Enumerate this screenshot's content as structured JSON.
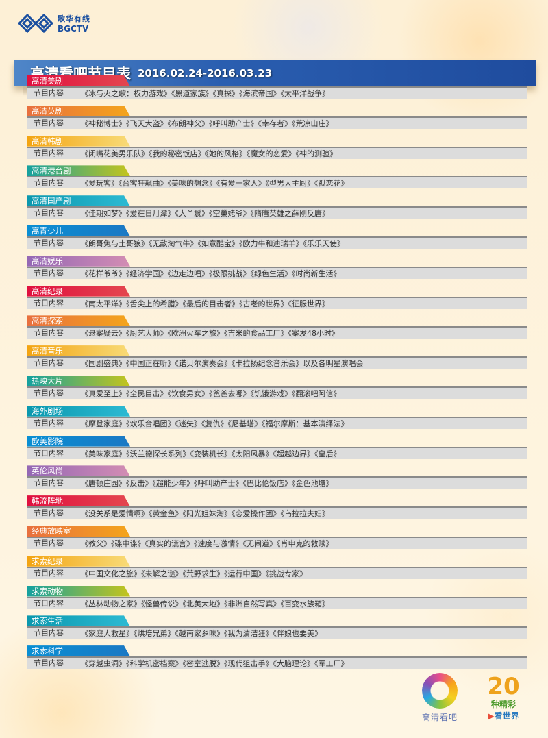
{
  "logo": {
    "cn": "歌华有线",
    "en": "BGCTV"
  },
  "header": {
    "title": "高清看吧节目表",
    "date_range": "2016.02.24-2016.03.23"
  },
  "row_label": "节目内容",
  "colors": {
    "red": "#e0103f",
    "orange": "#f4a51b",
    "yellow": "#f3a412",
    "green": "#16a19f",
    "cyan": "#0b98ae",
    "blue": "#0a8fd3",
    "purple": "#9468b5",
    "header_blue": "#2a5eb0"
  },
  "sections": [
    {
      "name": "高清美剧",
      "content": "《冰与火之歌：权力游戏》《黑道家族》《真探》《海滨帝国》《太平洋战争》"
    },
    {
      "name": "高清英剧",
      "content": "《神秘博士》《飞天大盗》《布朗神父》《呼叫助产士》《幸存者》《荒凉山庄》"
    },
    {
      "name": "高清韩剧",
      "content": "《闭嘴花美男乐队》《我的秘密饭店》《她的风格》《魔女的恋爱》《神的测验》"
    },
    {
      "name": "高清港台剧",
      "content": "《爱玩客》《台客狂飙曲》《美味的想念》《有爱一家人》《型男大主厨》《孤恋花》"
    },
    {
      "name": "高清国产剧",
      "content": "《佳期如梦》《爱在日月潭》《大丫鬟》《空巢姥爷》《隋唐英雄之薛刚反唐》"
    },
    {
      "name": "高青少儿",
      "content": "《朗哥兔与土哥狼》《无敌淘气牛》《如意酷宝》《欧力牛和迪瑞羊》《乐乐天使》"
    },
    {
      "name": "高清娱乐",
      "content": "《花样爷爷》《经济学园》《边走边唱》《极限挑战》《绿色生活》《时尚新生活》"
    },
    {
      "name": "高清纪录",
      "content": "《南太平洋》《舌尖上的希腊》《最后的目击者》《古老的世界》《征服世界》"
    },
    {
      "name": "高清探索",
      "content": "《悬案疑云》《厨艺大师》《欧洲火车之旅》《吉米的食品工厂》《案发48小时》"
    },
    {
      "name": "高清音乐",
      "content": "《国剧盛典》《中国正在听》《诺贝尔演奏会》《卡拉扬纪念音乐会》以及各明星演唱会"
    },
    {
      "name": "热映大片",
      "content": "《真爱至上》《全民目击》《饮食男女》《爸爸去哪》《饥饿游戏》《翻滚吧阿信》"
    },
    {
      "name": "海外剧场",
      "content": "《摩登家庭》《欢乐合唱团》《迷失》《复仇》《尼基塔》《福尔摩斯：基本演绎法》"
    },
    {
      "name": "欧美影院",
      "content": "《美味家庭》《沃兰德探长系列》《变装机长》《太阳风暴》《超越边界》《皇后》"
    },
    {
      "name": "英伦风尚",
      "content": "《唐顿庄园》《反击》《超能少年》《呼叫助产士》《巴比伦饭店》《金色池塘》"
    },
    {
      "name": "韩流阵地",
      "content": "《没关系是爱情啊》《黄金鱼》《阳光姐妹淘》《恋爱操作团》《乌拉拉夫妇》"
    },
    {
      "name": "经典放映室",
      "content": "《教父》《碟中谍》《真实的谎言》《速度与激情》《无间道》《肖申克的救赎》"
    },
    {
      "name": "求索纪录",
      "content": "《中国文化之旅》《未解之谜》《荒野求生》《运行中国》《挑战专家》"
    },
    {
      "name": "求索动物",
      "content": "《丛林动物之家》《怪兽传说》《北美大地》《非洲自然写真》《百变水族箱》"
    },
    {
      "name": "求索生活",
      "content": "《家庭大救星》《烘培兄弟》《越南家乡味》《我为清洁狂》《伴娘也要美》"
    },
    {
      "name": "求索科学",
      "content": "《穿越虫洞》《科学机密档案》《密室逃脱》《现代狙击手》《大脑理论》《军工厂》"
    }
  ],
  "footer": {
    "brand": "高清看吧",
    "number": "20",
    "slogan1": "种精彩",
    "slogan2": "看世界"
  }
}
